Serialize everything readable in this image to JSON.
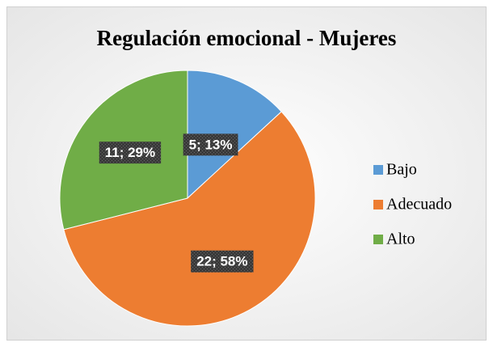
{
  "chart_data": {
    "type": "pie",
    "title": "Regulación emocional - Mujeres",
    "categories": [
      "Bajo",
      "Adecuado",
      "Alto"
    ],
    "values": [
      5,
      22,
      11
    ],
    "value_labels": [
      "5; 13%",
      "22; 58%",
      "11; 29%"
    ],
    "colors": [
      "#5b9bd5",
      "#ed7d31",
      "#70ad47"
    ],
    "legend": "right"
  }
}
